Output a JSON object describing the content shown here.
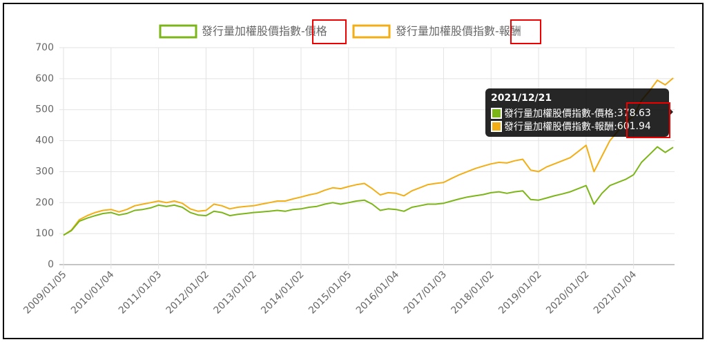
{
  "chart_data": {
    "type": "line",
    "categories": [
      "2009/01/05",
      null,
      null,
      null,
      null,
      null,
      "2010/01/04",
      null,
      null,
      null,
      null,
      null,
      "2011/01/03",
      null,
      null,
      null,
      null,
      null,
      "2012/01/02",
      null,
      null,
      null,
      null,
      null,
      "2013/01/02",
      null,
      null,
      null,
      null,
      null,
      "2014/01/02",
      null,
      null,
      null,
      null,
      null,
      "2015/01/05",
      null,
      null,
      null,
      null,
      null,
      "2016/01/04",
      null,
      null,
      null,
      null,
      null,
      "2017/01/03",
      null,
      null,
      null,
      null,
      null,
      "2018/01/02",
      null,
      null,
      null,
      null,
      null,
      "2019/01/02",
      null,
      null,
      null,
      null,
      null,
      "2020/01/02",
      null,
      null,
      null,
      null,
      null,
      "2021/01/04",
      null,
      null,
      null,
      null,
      null
    ],
    "series": [
      {
        "name": "發行量加權股價指數-價格",
        "color": "#7cb518",
        "values": [
          95,
          110,
          140,
          150,
          158,
          165,
          168,
          160,
          165,
          175,
          178,
          183,
          192,
          188,
          192,
          185,
          168,
          160,
          158,
          172,
          168,
          158,
          162,
          165,
          168,
          170,
          172,
          175,
          172,
          178,
          180,
          185,
          188,
          195,
          200,
          195,
          200,
          205,
          208,
          195,
          175,
          180,
          178,
          172,
          185,
          190,
          195,
          195,
          198,
          205,
          212,
          218,
          222,
          226,
          232,
          235,
          230,
          235,
          238,
          210,
          208,
          215,
          222,
          228,
          235,
          245,
          255,
          195,
          230,
          255,
          265,
          275,
          290,
          330,
          355,
          380,
          362,
          378.63
        ]
      },
      {
        "name": "發行量加權股價指數-報酬",
        "color": "#f2ae14",
        "values": [
          95,
          112,
          145,
          158,
          168,
          175,
          178,
          170,
          178,
          190,
          195,
          200,
          205,
          200,
          205,
          198,
          180,
          172,
          175,
          195,
          190,
          180,
          185,
          188,
          190,
          195,
          200,
          205,
          205,
          212,
          218,
          225,
          230,
          240,
          248,
          245,
          252,
          258,
          262,
          245,
          225,
          232,
          230,
          222,
          238,
          248,
          258,
          262,
          265,
          278,
          290,
          300,
          310,
          318,
          325,
          330,
          328,
          335,
          340,
          305,
          300,
          315,
          325,
          335,
          345,
          365,
          385,
          300,
          350,
          400,
          430,
          460,
          480,
          530,
          560,
          595,
          580,
          601.94
        ]
      }
    ],
    "ylim": [
      0,
      700
    ],
    "yticks": [
      0,
      100,
      200,
      300,
      400,
      500,
      600,
      700
    ],
    "grid": true,
    "legend": "top",
    "tooltip": {
      "title": "2021/12/21"
    }
  }
}
